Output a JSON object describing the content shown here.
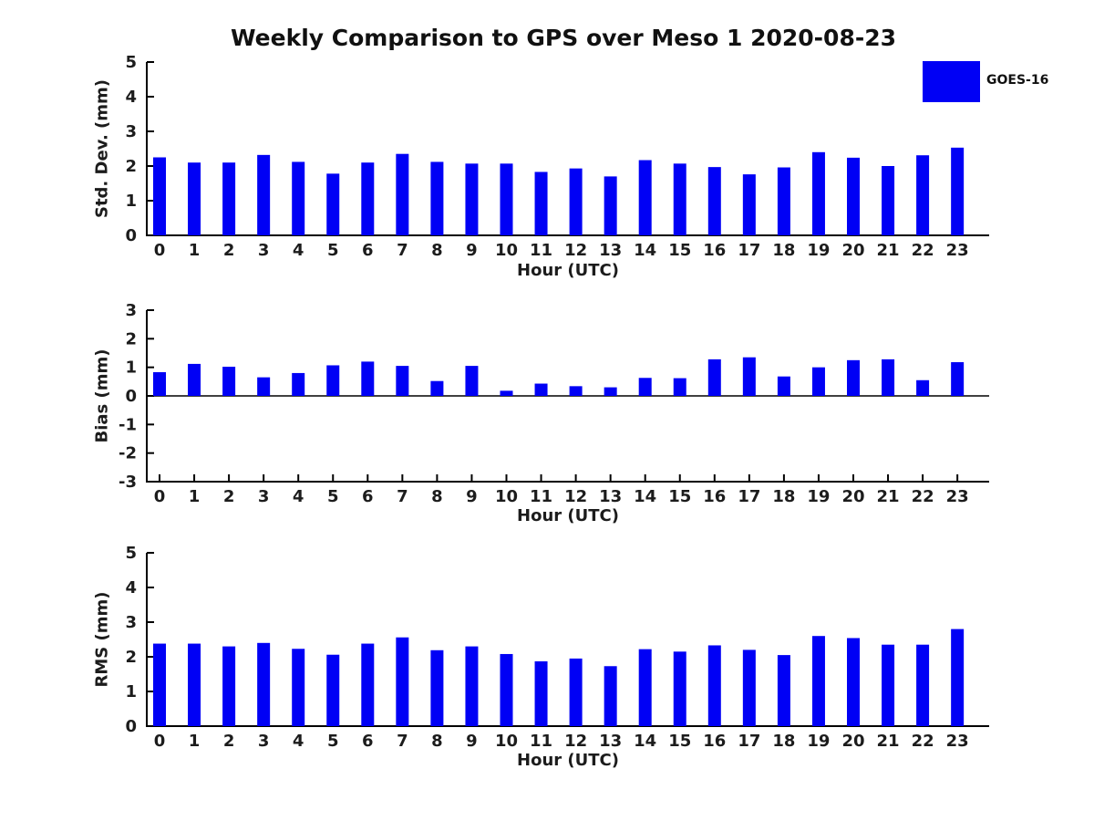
{
  "title": "Weekly Comparison to GPS over Meso 1 2020-08-23",
  "legend": {
    "label": "GOES-16",
    "position": "upper right outside"
  },
  "colors": {
    "bar": "#0000f5",
    "text": "#1c1c1c",
    "axis": "#000000",
    "background": "#ffffff"
  },
  "chart_data": [
    {
      "type": "bar",
      "series_name": "GOES-16",
      "title": "",
      "xlabel": "Hour (UTC)",
      "ylabel": "Std. Dev. (mm)",
      "categories": [
        "0",
        "1",
        "2",
        "3",
        "4",
        "5",
        "6",
        "7",
        "8",
        "9",
        "10",
        "11",
        "12",
        "13",
        "14",
        "15",
        "16",
        "17",
        "18",
        "19",
        "20",
        "21",
        "22",
        "23"
      ],
      "values": [
        2.25,
        2.1,
        2.1,
        2.32,
        2.12,
        1.78,
        2.1,
        2.35,
        2.12,
        2.07,
        2.07,
        1.83,
        1.93,
        1.7,
        2.17,
        2.07,
        1.97,
        1.76,
        1.96,
        2.4,
        2.24,
        2.0,
        2.31,
        2.53
      ],
      "ylim": [
        0,
        5
      ],
      "yticks": [
        0,
        1,
        2,
        3,
        4,
        5
      ],
      "grid": false
    },
    {
      "type": "bar",
      "series_name": "GOES-16",
      "title": "",
      "xlabel": "Hour (UTC)",
      "ylabel": "Bias (mm)",
      "categories": [
        "0",
        "1",
        "2",
        "3",
        "4",
        "5",
        "6",
        "7",
        "8",
        "9",
        "10",
        "11",
        "12",
        "13",
        "14",
        "15",
        "16",
        "17",
        "18",
        "19",
        "20",
        "21",
        "22",
        "23"
      ],
      "values": [
        0.83,
        1.12,
        1.02,
        0.65,
        0.8,
        1.07,
        1.2,
        1.05,
        0.52,
        1.05,
        0.18,
        0.43,
        0.34,
        0.3,
        0.63,
        0.62,
        1.28,
        1.35,
        0.68,
        1.0,
        1.25,
        1.28,
        0.55,
        1.18
      ],
      "ylim": [
        -3,
        3
      ],
      "yticks": [
        3,
        2,
        1,
        0,
        -1,
        -2,
        -3
      ],
      "grid": false
    },
    {
      "type": "bar",
      "series_name": "GOES-16",
      "title": "",
      "xlabel": "Hour (UTC)",
      "ylabel": "RMS (mm)",
      "categories": [
        "0",
        "1",
        "2",
        "3",
        "4",
        "5",
        "6",
        "7",
        "8",
        "9",
        "10",
        "11",
        "12",
        "13",
        "14",
        "15",
        "16",
        "17",
        "18",
        "19",
        "20",
        "21",
        "22",
        "23"
      ],
      "values": [
        2.38,
        2.38,
        2.3,
        2.4,
        2.23,
        2.06,
        2.38,
        2.56,
        2.19,
        2.3,
        2.08,
        1.87,
        1.95,
        1.73,
        2.22,
        2.15,
        2.33,
        2.2,
        2.05,
        2.6,
        2.54,
        2.35,
        2.35,
        2.8
      ],
      "ylim": [
        0,
        5
      ],
      "yticks": [
        0,
        1,
        2,
        3,
        4,
        5
      ],
      "grid": false
    }
  ]
}
